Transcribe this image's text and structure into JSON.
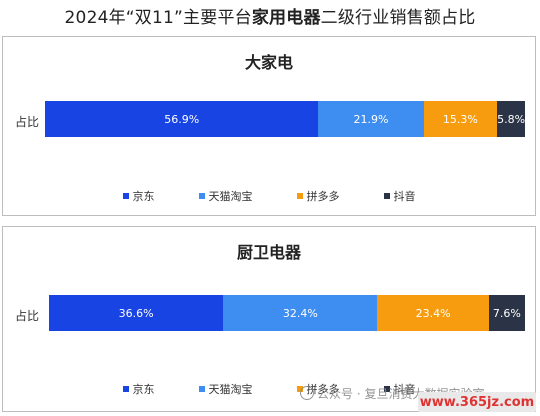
{
  "title": {
    "prefix": "2024年“双11”主要平台",
    "emphasis": "家用电器",
    "suffix": "二级行业销售额占比"
  },
  "colors": {
    "京东": "#1844e3",
    "天猫淘宝": "#3d8ef0",
    "拼多多": "#f79c0e",
    "抖音": "#2b3346"
  },
  "chart_data": [
    {
      "type": "bar",
      "orientation": "horizontal-stacked-100",
      "title": "大家电",
      "categories": [
        "占比"
      ],
      "series": [
        {
          "name": "京东",
          "values": [
            56.9
          ],
          "label": "56.9%"
        },
        {
          "name": "天猫淘宝",
          "values": [
            21.9
          ],
          "label": "21.9%"
        },
        {
          "name": "拼多多",
          "values": [
            15.3
          ],
          "label": "15.3%"
        },
        {
          "name": "抖音",
          "values": [
            5.8
          ],
          "label": "5.8%"
        }
      ],
      "legend_position": "bottom"
    },
    {
      "type": "bar",
      "orientation": "horizontal-stacked-100",
      "title": "厨卫电器",
      "categories": [
        "占比"
      ],
      "series": [
        {
          "name": "京东",
          "values": [
            36.6
          ],
          "label": "36.6%"
        },
        {
          "name": "天猫淘宝",
          "values": [
            32.4
          ],
          "label": "32.4%"
        },
        {
          "name": "拼多多",
          "values": [
            23.4
          ],
          "label": "23.4%"
        },
        {
          "name": "抖音",
          "values": [
            7.6
          ],
          "label": "7.6%"
        }
      ],
      "legend_position": "bottom"
    }
  ],
  "watermark": {
    "text": "公众号 · 复旦消费大数据实验室",
    "site": "www.365jz.com"
  }
}
